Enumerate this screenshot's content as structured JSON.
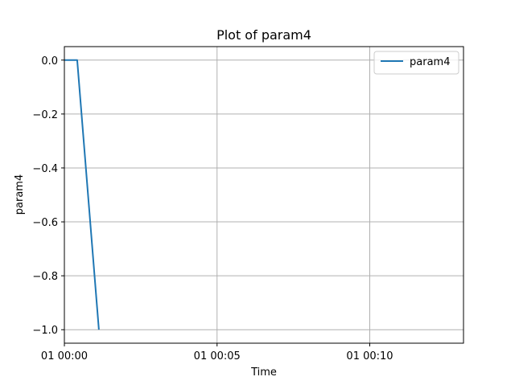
{
  "chart_data": {
    "type": "line",
    "title": "Plot of param4",
    "xlabel": "Time",
    "ylabel": "param4",
    "x_unit": "minutes",
    "x_tick_minutes": [
      0,
      5,
      10
    ],
    "x_tick_labels": [
      "01 00:00",
      "01 00:05",
      "01 00:10"
    ],
    "y_ticks": [
      0.0,
      -0.2,
      -0.4,
      -0.6,
      -0.8,
      -1.0
    ],
    "y_tick_labels": [
      "0.0",
      "−0.2",
      "−0.4",
      "−0.6",
      "−0.8",
      "−1.0"
    ],
    "xlim": [
      0,
      13.07
    ],
    "ylim": [
      -1.05,
      0.05
    ],
    "grid": true,
    "legend_position": "upper right",
    "series": [
      {
        "name": "param4",
        "color": "#1f77b4",
        "x": [
          0,
          0.42,
          1.13
        ],
        "y": [
          0.0,
          0.0,
          -1.0
        ]
      }
    ]
  }
}
